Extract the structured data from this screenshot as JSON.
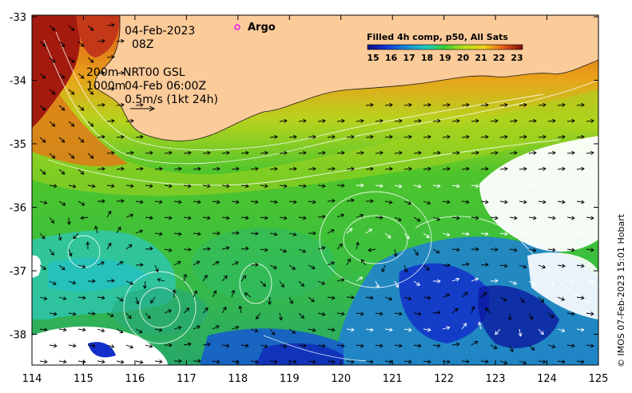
{
  "annotations": {
    "date": "04-Feb-2023",
    "hour": "08Z",
    "depth_line1": "200m",
    "depth_line2": "1000m",
    "product": "NRT00 GSL",
    "product_time": "04-Feb 06:00Z",
    "scale_label": "0.5m/s (1kt 24h)",
    "argo_label": "Argo"
  },
  "colorbar": {
    "title": "Filled 4h comp, p50, All Sats",
    "ticks": [
      "15",
      "16",
      "17",
      "18",
      "19",
      "20",
      "21",
      "22",
      "23"
    ]
  },
  "credit": "© IMOS 07-Feb-2023 15:01 Hobart",
  "axes": {
    "x_ticks": [
      "114",
      "115",
      "116",
      "117",
      "118",
      "119",
      "120",
      "121",
      "122",
      "123",
      "124",
      "125"
    ],
    "y_ticks": [
      "-33",
      "-34",
      "-35",
      "-36",
      "-37",
      "-38"
    ]
  },
  "colors": {
    "land": "#fccb9a",
    "no_data": "#ffffff",
    "argo_marker": "#e61ee6"
  }
}
